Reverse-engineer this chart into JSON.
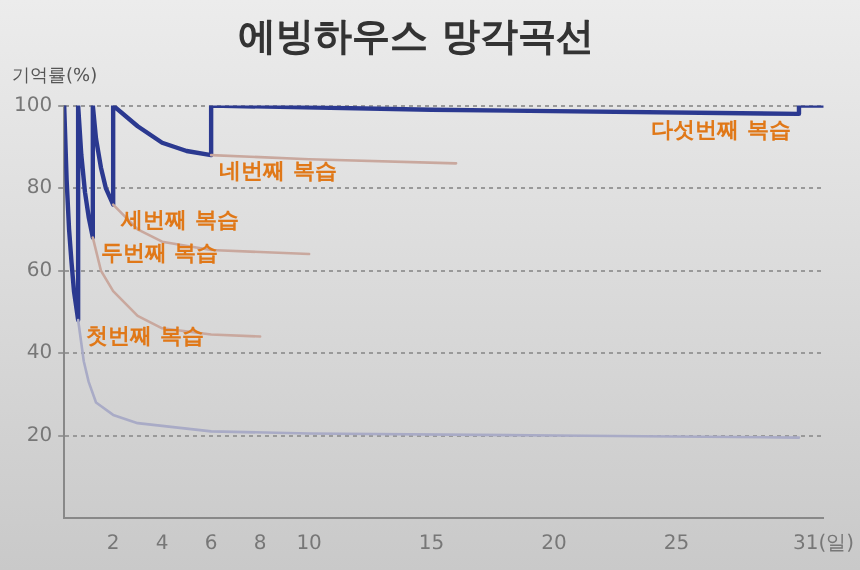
{
  "chart_data": {
    "type": "line",
    "title": "에빙하우스 망각곡선",
    "ylabel": "기억률(%)",
    "xlim": [
      0,
      31
    ],
    "xticks": [
      2,
      4,
      6,
      8,
      10,
      15,
      20,
      25,
      {
        "value": 31,
        "label": "31(일)"
      }
    ],
    "ylim": [
      0,
      100
    ],
    "yticks": [
      20,
      40,
      60,
      80,
      100
    ],
    "grid": "y",
    "legend": false,
    "marker": "none",
    "line_style": "solid",
    "series": [
      {
        "color": "#2b3990",
        "x": [
          0,
          0.1,
          0.2,
          0.3,
          0.4,
          0.57,
          0.57,
          0.7,
          0.85,
          1.0,
          1.17,
          1.17,
          1.3,
          1.5,
          1.7,
          2,
          2,
          3,
          4,
          5,
          6,
          6,
          15,
          30,
          30,
          31
        ],
        "values": [
          100,
          82,
          70,
          62,
          55,
          48,
          100,
          88,
          79,
          73,
          68,
          100,
          92,
          85,
          80,
          76,
          100,
          95,
          91,
          89,
          88,
          100,
          99,
          98,
          100,
          100
        ]
      },
      {
        "color": "#a9abc6",
        "x": [
          0.57,
          0.8,
          1.0,
          1.3,
          2,
          3,
          6,
          10,
          20,
          30
        ],
        "values": [
          48,
          38,
          33,
          28,
          25,
          23,
          21,
          20.5,
          20,
          19.5
        ]
      },
      {
        "color": "#c9a89e",
        "x": [
          1.17,
          1.5,
          2,
          3,
          4,
          6,
          8
        ],
        "values": [
          68,
          60,
          55,
          49,
          46,
          44.5,
          44
        ]
      },
      {
        "color": "#c9a89e",
        "x": [
          2,
          3,
          4,
          6,
          8,
          10
        ],
        "values": [
          76,
          70,
          67,
          65,
          64.5,
          64
        ]
      },
      {
        "color": "#c9a89e",
        "x": [
          6,
          10,
          16
        ],
        "values": [
          88,
          87,
          86
        ]
      }
    ],
    "annotations": [
      {
        "text": "첫번째 복습",
        "x": 0.57,
        "y": 48
      },
      {
        "text": "두번째 복습",
        "x": 1.17,
        "y": 68
      },
      {
        "text": "세번째 복습",
        "x": 2,
        "y": 76
      },
      {
        "text": "네번째 복습",
        "x": 6,
        "y": 88
      },
      {
        "text": "다섯번째 복습",
        "x": 30,
        "y": 98
      }
    ]
  }
}
